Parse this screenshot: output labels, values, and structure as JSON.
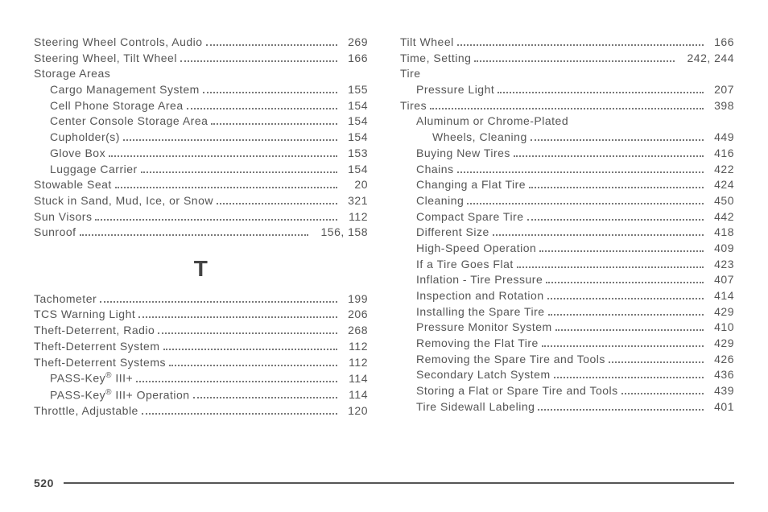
{
  "left": {
    "entries": [
      {
        "label": "Steering Wheel Controls, Audio",
        "page": "269",
        "indent": 0
      },
      {
        "label": "Steering Wheel, Tilt Wheel",
        "page": "166",
        "indent": 0
      },
      {
        "label": "Storage Areas",
        "page": "",
        "indent": 0,
        "noPage": true
      },
      {
        "label": "Cargo Management System",
        "page": "155",
        "indent": 1
      },
      {
        "label": "Cell Phone Storage Area",
        "page": "154",
        "indent": 1
      },
      {
        "label": "Center Console Storage Area",
        "page": "154",
        "indent": 1
      },
      {
        "label": "Cupholder(s)",
        "page": "154",
        "indent": 1
      },
      {
        "label": "Glove Box",
        "page": "153",
        "indent": 1
      },
      {
        "label": "Luggage Carrier",
        "page": "154",
        "indent": 1
      },
      {
        "label": "Stowable Seat",
        "page": "20",
        "indent": 0
      },
      {
        "label": "Stuck in Sand, Mud, Ice, or Snow",
        "page": "321",
        "indent": 0
      },
      {
        "label": "Sun Visors",
        "page": "112",
        "indent": 0
      },
      {
        "label": "Sunroof",
        "page": "156, 158",
        "indent": 0,
        "wide": true
      }
    ],
    "sectionLetter": "T",
    "entriesT": [
      {
        "label": "Tachometer",
        "page": "199",
        "indent": 0
      },
      {
        "label": "TCS Warning Light",
        "page": "206",
        "indent": 0
      },
      {
        "label": "Theft-Deterrent, Radio",
        "page": "268",
        "indent": 0
      },
      {
        "label": "Theft-Deterrent System",
        "page": "112",
        "indent": 0
      },
      {
        "label": "Theft-Deterrent Systems",
        "page": "112",
        "indent": 0
      },
      {
        "label": "PASS-Key® III+",
        "page": "114",
        "indent": 1,
        "reg": true
      },
      {
        "label": "PASS-Key® III+ Operation",
        "page": "114",
        "indent": 1,
        "reg": true
      },
      {
        "label": "Throttle, Adjustable",
        "page": "120",
        "indent": 0
      }
    ]
  },
  "right": {
    "entries": [
      {
        "label": "Tilt Wheel",
        "page": "166",
        "indent": 0
      },
      {
        "label": "Time, Setting",
        "page": "242, 244",
        "indent": 0,
        "wide": true
      },
      {
        "label": "Tire",
        "page": "",
        "indent": 0,
        "noPage": true
      },
      {
        "label": "Pressure Light",
        "page": "207",
        "indent": 1
      },
      {
        "label": "Tires",
        "page": "398",
        "indent": 0
      },
      {
        "label": "Aluminum or Chrome-Plated",
        "page": "",
        "indent": 1,
        "noPage": true
      },
      {
        "label": "Wheels, Cleaning",
        "page": "449",
        "indent": 2
      },
      {
        "label": "Buying New Tires",
        "page": "416",
        "indent": 1
      },
      {
        "label": "Chains",
        "page": "422",
        "indent": 1
      },
      {
        "label": "Changing a Flat Tire",
        "page": "424",
        "indent": 1
      },
      {
        "label": "Cleaning",
        "page": "450",
        "indent": 1
      },
      {
        "label": "Compact Spare Tire",
        "page": "442",
        "indent": 1
      },
      {
        "label": "Different Size",
        "page": "418",
        "indent": 1
      },
      {
        "label": "High-Speed Operation",
        "page": "409",
        "indent": 1
      },
      {
        "label": "If a Tire Goes Flat",
        "page": "423",
        "indent": 1
      },
      {
        "label": "Inflation - Tire Pressure",
        "page": "407",
        "indent": 1
      },
      {
        "label": "Inspection and Rotation",
        "page": "414",
        "indent": 1
      },
      {
        "label": "Installing the Spare Tire",
        "page": "429",
        "indent": 1
      },
      {
        "label": "Pressure Monitor System",
        "page": "410",
        "indent": 1
      },
      {
        "label": "Removing the Flat Tire",
        "page": "429",
        "indent": 1
      },
      {
        "label": "Removing the Spare Tire and Tools",
        "page": "426",
        "indent": 1
      },
      {
        "label": "Secondary Latch System",
        "page": "436",
        "indent": 1
      },
      {
        "label": "Storing a Flat or Spare Tire and Tools",
        "page": "439",
        "indent": 1
      },
      {
        "label": "Tire Sidewall Labeling",
        "page": "401",
        "indent": 1
      }
    ]
  },
  "footerPage": "520"
}
